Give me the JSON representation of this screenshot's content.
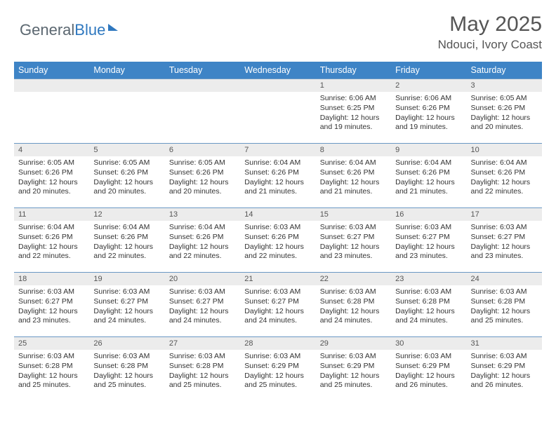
{
  "logo": {
    "part1": "General",
    "part2": "Blue"
  },
  "title": {
    "month": "May 2025",
    "location": "Ndouci, Ivory Coast"
  },
  "colors": {
    "header_bg": "#3e84c6",
    "header_text": "#ffffff",
    "daynum_bg": "#ececec",
    "border": "#6a98c4",
    "text": "#333333",
    "title_text": "#555555"
  },
  "weekdays": [
    "Sunday",
    "Monday",
    "Tuesday",
    "Wednesday",
    "Thursday",
    "Friday",
    "Saturday"
  ],
  "weeks": [
    [
      null,
      null,
      null,
      null,
      {
        "n": "1",
        "sr": "Sunrise: 6:06 AM",
        "ss": "Sunset: 6:25 PM",
        "d1": "Daylight: 12 hours",
        "d2": "and 19 minutes."
      },
      {
        "n": "2",
        "sr": "Sunrise: 6:06 AM",
        "ss": "Sunset: 6:26 PM",
        "d1": "Daylight: 12 hours",
        "d2": "and 19 minutes."
      },
      {
        "n": "3",
        "sr": "Sunrise: 6:05 AM",
        "ss": "Sunset: 6:26 PM",
        "d1": "Daylight: 12 hours",
        "d2": "and 20 minutes."
      }
    ],
    [
      {
        "n": "4",
        "sr": "Sunrise: 6:05 AM",
        "ss": "Sunset: 6:26 PM",
        "d1": "Daylight: 12 hours",
        "d2": "and 20 minutes."
      },
      {
        "n": "5",
        "sr": "Sunrise: 6:05 AM",
        "ss": "Sunset: 6:26 PM",
        "d1": "Daylight: 12 hours",
        "d2": "and 20 minutes."
      },
      {
        "n": "6",
        "sr": "Sunrise: 6:05 AM",
        "ss": "Sunset: 6:26 PM",
        "d1": "Daylight: 12 hours",
        "d2": "and 20 minutes."
      },
      {
        "n": "7",
        "sr": "Sunrise: 6:04 AM",
        "ss": "Sunset: 6:26 PM",
        "d1": "Daylight: 12 hours",
        "d2": "and 21 minutes."
      },
      {
        "n": "8",
        "sr": "Sunrise: 6:04 AM",
        "ss": "Sunset: 6:26 PM",
        "d1": "Daylight: 12 hours",
        "d2": "and 21 minutes."
      },
      {
        "n": "9",
        "sr": "Sunrise: 6:04 AM",
        "ss": "Sunset: 6:26 PM",
        "d1": "Daylight: 12 hours",
        "d2": "and 21 minutes."
      },
      {
        "n": "10",
        "sr": "Sunrise: 6:04 AM",
        "ss": "Sunset: 6:26 PM",
        "d1": "Daylight: 12 hours",
        "d2": "and 22 minutes."
      }
    ],
    [
      {
        "n": "11",
        "sr": "Sunrise: 6:04 AM",
        "ss": "Sunset: 6:26 PM",
        "d1": "Daylight: 12 hours",
        "d2": "and 22 minutes."
      },
      {
        "n": "12",
        "sr": "Sunrise: 6:04 AM",
        "ss": "Sunset: 6:26 PM",
        "d1": "Daylight: 12 hours",
        "d2": "and 22 minutes."
      },
      {
        "n": "13",
        "sr": "Sunrise: 6:04 AM",
        "ss": "Sunset: 6:26 PM",
        "d1": "Daylight: 12 hours",
        "d2": "and 22 minutes."
      },
      {
        "n": "14",
        "sr": "Sunrise: 6:03 AM",
        "ss": "Sunset: 6:26 PM",
        "d1": "Daylight: 12 hours",
        "d2": "and 22 minutes."
      },
      {
        "n": "15",
        "sr": "Sunrise: 6:03 AM",
        "ss": "Sunset: 6:27 PM",
        "d1": "Daylight: 12 hours",
        "d2": "and 23 minutes."
      },
      {
        "n": "16",
        "sr": "Sunrise: 6:03 AM",
        "ss": "Sunset: 6:27 PM",
        "d1": "Daylight: 12 hours",
        "d2": "and 23 minutes."
      },
      {
        "n": "17",
        "sr": "Sunrise: 6:03 AM",
        "ss": "Sunset: 6:27 PM",
        "d1": "Daylight: 12 hours",
        "d2": "and 23 minutes."
      }
    ],
    [
      {
        "n": "18",
        "sr": "Sunrise: 6:03 AM",
        "ss": "Sunset: 6:27 PM",
        "d1": "Daylight: 12 hours",
        "d2": "and 23 minutes."
      },
      {
        "n": "19",
        "sr": "Sunrise: 6:03 AM",
        "ss": "Sunset: 6:27 PM",
        "d1": "Daylight: 12 hours",
        "d2": "and 24 minutes."
      },
      {
        "n": "20",
        "sr": "Sunrise: 6:03 AM",
        "ss": "Sunset: 6:27 PM",
        "d1": "Daylight: 12 hours",
        "d2": "and 24 minutes."
      },
      {
        "n": "21",
        "sr": "Sunrise: 6:03 AM",
        "ss": "Sunset: 6:27 PM",
        "d1": "Daylight: 12 hours",
        "d2": "and 24 minutes."
      },
      {
        "n": "22",
        "sr": "Sunrise: 6:03 AM",
        "ss": "Sunset: 6:28 PM",
        "d1": "Daylight: 12 hours",
        "d2": "and 24 minutes."
      },
      {
        "n": "23",
        "sr": "Sunrise: 6:03 AM",
        "ss": "Sunset: 6:28 PM",
        "d1": "Daylight: 12 hours",
        "d2": "and 24 minutes."
      },
      {
        "n": "24",
        "sr": "Sunrise: 6:03 AM",
        "ss": "Sunset: 6:28 PM",
        "d1": "Daylight: 12 hours",
        "d2": "and 25 minutes."
      }
    ],
    [
      {
        "n": "25",
        "sr": "Sunrise: 6:03 AM",
        "ss": "Sunset: 6:28 PM",
        "d1": "Daylight: 12 hours",
        "d2": "and 25 minutes."
      },
      {
        "n": "26",
        "sr": "Sunrise: 6:03 AM",
        "ss": "Sunset: 6:28 PM",
        "d1": "Daylight: 12 hours",
        "d2": "and 25 minutes."
      },
      {
        "n": "27",
        "sr": "Sunrise: 6:03 AM",
        "ss": "Sunset: 6:28 PM",
        "d1": "Daylight: 12 hours",
        "d2": "and 25 minutes."
      },
      {
        "n": "28",
        "sr": "Sunrise: 6:03 AM",
        "ss": "Sunset: 6:29 PM",
        "d1": "Daylight: 12 hours",
        "d2": "and 25 minutes."
      },
      {
        "n": "29",
        "sr": "Sunrise: 6:03 AM",
        "ss": "Sunset: 6:29 PM",
        "d1": "Daylight: 12 hours",
        "d2": "and 25 minutes."
      },
      {
        "n": "30",
        "sr": "Sunrise: 6:03 AM",
        "ss": "Sunset: 6:29 PM",
        "d1": "Daylight: 12 hours",
        "d2": "and 26 minutes."
      },
      {
        "n": "31",
        "sr": "Sunrise: 6:03 AM",
        "ss": "Sunset: 6:29 PM",
        "d1": "Daylight: 12 hours",
        "d2": "and 26 minutes."
      }
    ]
  ]
}
